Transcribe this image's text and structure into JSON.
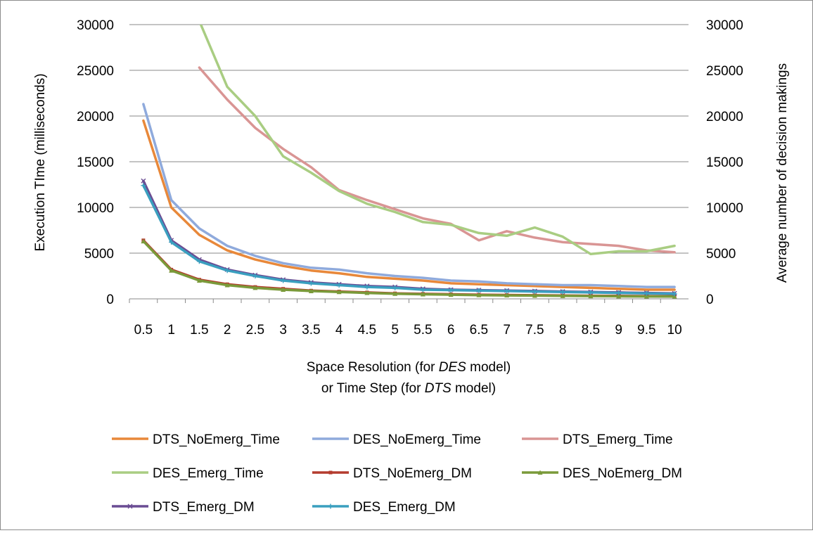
{
  "chart_data": {
    "type": "line",
    "title": "",
    "xlabel": [
      "Space Resolution (for ",
      "DES",
      " model)",
      "or Time Step (for ",
      "DTS",
      " model)"
    ],
    "ylabel": "Execution TIme (milliseconds)",
    "y2label": "Average number of decision makings",
    "ylim": [
      0,
      30000
    ],
    "y2lim": [
      0,
      30000
    ],
    "yticks": [
      "0",
      "5000",
      "10000",
      "15000",
      "20000",
      "25000",
      "30000"
    ],
    "y2ticks": [
      "0",
      "5000",
      "10000",
      "15000",
      "20000",
      "25000",
      "30000"
    ],
    "categories": [
      "0.5",
      "1",
      "1.5",
      "2",
      "2.5",
      "3",
      "3.5",
      "4",
      "4.5",
      "5",
      "5.5",
      "6",
      "6.5",
      "7",
      "7.5",
      "8",
      "8.5",
      "9",
      "9.5",
      "10"
    ],
    "grid": true,
    "legend_position": "bottom",
    "series": [
      {
        "name": "DTS_NoEmerg_Time",
        "color": "#e8883a",
        "marker": "none",
        "axis": "left",
        "values": [
          19500,
          10000,
          7000,
          5300,
          4300,
          3600,
          3100,
          2800,
          2400,
          2200,
          2000,
          1700,
          1600,
          1500,
          1400,
          1300,
          1200,
          1100,
          1000,
          1000
        ]
      },
      {
        "name": "DES_NoEmerg_Time",
        "color": "#8faadc",
        "marker": "none",
        "axis": "left",
        "values": [
          21300,
          10800,
          7700,
          5800,
          4700,
          3900,
          3400,
          3200,
          2800,
          2500,
          2300,
          2000,
          1900,
          1700,
          1600,
          1500,
          1500,
          1400,
          1300,
          1300
        ]
      },
      {
        "name": "DTS_Emerg_Time",
        "color": "#d99594",
        "marker": "none",
        "axis": "left",
        "values": [
          null,
          null,
          25300,
          21800,
          18700,
          16400,
          14400,
          11900,
          10800,
          9800,
          8800,
          8200,
          6400,
          7400,
          6700,
          6200,
          6000,
          5800,
          5300,
          5100
        ]
      },
      {
        "name": "DES_Emerg_Time",
        "color": "#a9cd82",
        "marker": "none",
        "axis": "left",
        "values": [
          null,
          null,
          30400,
          23200,
          20000,
          15600,
          13800,
          11800,
          10400,
          9500,
          8400,
          8100,
          7200,
          6900,
          7800,
          6800,
          4900,
          5200,
          5200,
          5800
        ]
      },
      {
        "name": "DTS_NoEmerg_DM",
        "color": "#b43c2e",
        "marker": "square",
        "axis": "right",
        "values": [
          6400,
          3200,
          2100,
          1600,
          1300,
          1100,
          900,
          800,
          700,
          600,
          550,
          500,
          450,
          420,
          390,
          360,
          340,
          320,
          300,
          290
        ]
      },
      {
        "name": "DES_NoEmerg_DM",
        "color": "#7a9a3a",
        "marker": "triangle",
        "axis": "right",
        "values": [
          6300,
          3100,
          2000,
          1500,
          1200,
          1000,
          850,
          750,
          650,
          560,
          500,
          450,
          410,
          380,
          350,
          320,
          300,
          280,
          260,
          250
        ]
      },
      {
        "name": "DTS_Emerg_DM",
        "color": "#6a4c93",
        "marker": "x",
        "axis": "right",
        "values": [
          12900,
          6400,
          4300,
          3200,
          2600,
          2100,
          1800,
          1600,
          1400,
          1300,
          1100,
          1000,
          950,
          900,
          850,
          800,
          750,
          700,
          650,
          600
        ]
      },
      {
        "name": "DES_Emerg_DM",
        "color": "#3a9fbf",
        "marker": "star",
        "axis": "right",
        "values": [
          12400,
          6200,
          4100,
          3100,
          2500,
          2000,
          1700,
          1500,
          1300,
          1200,
          1000,
          950,
          900,
          850,
          800,
          750,
          700,
          650,
          600,
          550
        ]
      }
    ]
  }
}
